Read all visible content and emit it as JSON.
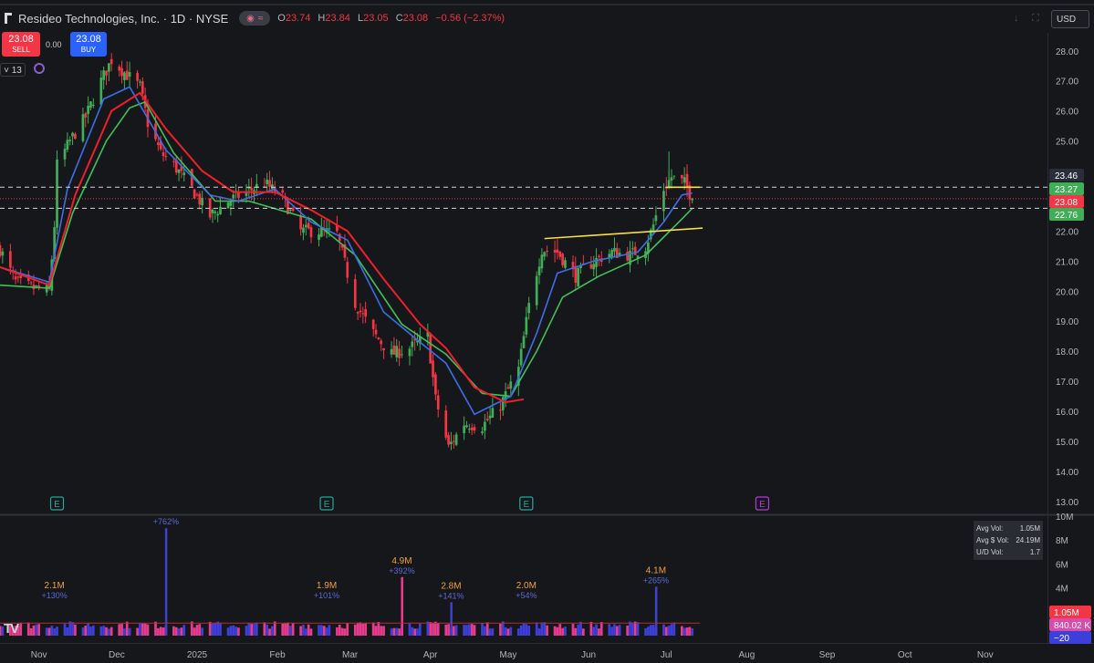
{
  "header": {
    "title": "Resideo Technologies, Inc. · 1D · NYSE",
    "o_label": "O",
    "o": "23.74",
    "h_label": "H",
    "h": "23.84",
    "l_label": "L",
    "l": "23.05",
    "c_label": "C",
    "c": "23.08",
    "change": "−0.56 (−2.37%)"
  },
  "trade": {
    "sell_price": "23.08",
    "sell_label": "SELL",
    "spread": "0.00",
    "buy_price": "23.08",
    "buy_label": "BUY"
  },
  "toolbar": {
    "count": "13",
    "currency": "USD"
  },
  "colors": {
    "up": "#3fae57",
    "down": "#f23645",
    "ema_red": "#f01f2a",
    "ema_blue": "#3d6ee8",
    "ema_green": "#3fc15a",
    "trendline": "#f6e14a",
    "vol_up": "#3d3fd8",
    "vol_down": "#e73c8e"
  },
  "volume_stats": {
    "avg_vol_label": "Avg Vol:",
    "avg_vol": "1.05M",
    "avg_dollar_vol_label": "Avg $ Vol:",
    "avg_dollar_vol": "24.19M",
    "ud_vol_label": "U/D Vol:",
    "ud_vol": "1.7"
  },
  "chart_data": [
    {
      "type": "candlestick",
      "title": "Resideo Technologies, Inc. · 1D · NYSE",
      "y_ticks": [
        13,
        14,
        15,
        16,
        17,
        18,
        19,
        20,
        21,
        22,
        23,
        24,
        25,
        26,
        27,
        28
      ],
      "y_tick_labels": [
        "13.00",
        "14.00",
        "15.00",
        "16.00",
        "17.00",
        "18.00",
        "19.00",
        "20.00",
        "21.00",
        "22.00",
        "",
        "",
        "25.00",
        "26.00",
        "27.00",
        "28.00"
      ],
      "ylim": [
        12.6,
        28.6
      ],
      "x_ticks": [
        {
          "label": "Nov",
          "date": "2024-11-01"
        },
        {
          "label": "Dec",
          "date": "2024-12-01"
        },
        {
          "label": "2025",
          "date": "2025-01-01"
        },
        {
          "label": "Feb",
          "date": "2025-02-01"
        },
        {
          "label": "Mar",
          "date": "2025-03-01"
        },
        {
          "label": "Apr",
          "date": "2025-04-01"
        },
        {
          "label": "May",
          "date": "2025-05-01"
        },
        {
          "label": "Jun",
          "date": "2025-06-01"
        },
        {
          "label": "Jul",
          "date": "2025-07-01"
        },
        {
          "label": "Aug",
          "date": "2025-08-01"
        },
        {
          "label": "Sep",
          "date": "2025-09-01"
        },
        {
          "label": "Oct",
          "date": "2025-10-01"
        },
        {
          "label": "Nov",
          "date": "2025-11-01"
        }
      ],
      "xlim": [
        "2024-10-17",
        "2025-11-25"
      ],
      "close_path": [
        [
          "2024-10-17",
          21.4
        ],
        [
          "2024-10-23",
          20.3
        ],
        [
          "2024-10-30",
          20.1
        ],
        [
          "2024-11-05",
          20.0
        ],
        [
          "2024-11-07",
          22.2
        ],
        [
          "2024-11-08",
          24.2
        ],
        [
          "2024-11-13",
          25.0
        ],
        [
          "2024-11-19",
          25.8
        ],
        [
          "2024-11-25",
          27.0
        ],
        [
          "2024-11-29",
          27.7
        ],
        [
          "2024-12-05",
          27.2
        ],
        [
          "2024-12-10",
          26.8
        ],
        [
          "2024-12-13",
          25.6
        ],
        [
          "2024-12-18",
          24.6
        ],
        [
          "2024-12-23",
          24.2
        ],
        [
          "2024-12-30",
          23.4
        ],
        [
          "2025-01-06",
          22.5
        ],
        [
          "2025-01-13",
          23.0
        ],
        [
          "2025-01-20",
          23.3
        ],
        [
          "2025-01-27",
          23.6
        ],
        [
          "2025-02-03",
          23.1
        ],
        [
          "2025-02-10",
          22.0
        ],
        [
          "2025-02-17",
          22.0
        ],
        [
          "2025-02-24",
          21.9
        ],
        [
          "2025-03-03",
          19.6
        ],
        [
          "2025-03-10",
          18.6
        ],
        [
          "2025-03-17",
          17.9
        ],
        [
          "2025-03-24",
          18.1
        ],
        [
          "2025-03-31",
          18.5
        ],
        [
          "2025-04-03",
          16.4
        ],
        [
          "2025-04-08",
          14.8
        ],
        [
          "2025-04-14",
          15.6
        ],
        [
          "2025-04-21",
          15.5
        ],
        [
          "2025-04-28",
          16.2
        ],
        [
          "2025-05-05",
          17.4
        ],
        [
          "2025-05-09",
          19.5
        ],
        [
          "2025-05-14",
          21.4
        ],
        [
          "2025-05-20",
          21.3
        ],
        [
          "2025-05-27",
          20.5
        ],
        [
          "2025-06-03",
          21.0
        ],
        [
          "2025-06-10",
          21.3
        ],
        [
          "2025-06-17",
          21.2
        ],
        [
          "2025-06-23",
          21.5
        ],
        [
          "2025-06-26",
          22.2
        ],
        [
          "2025-06-30",
          23.4
        ],
        [
          "2025-07-03",
          23.8
        ],
        [
          "2025-07-08",
          23.6
        ],
        [
          "2025-07-11",
          23.08
        ]
      ],
      "spike_high": {
        "date": "2025-07-02",
        "value": 24.65
      },
      "ema_red": [
        [
          "2024-10-17",
          20.8
        ],
        [
          "2024-11-05",
          20.2
        ],
        [
          "2024-11-15",
          23.2
        ],
        [
          "2024-11-29",
          26.0
        ],
        [
          "2024-12-10",
          26.6
        ],
        [
          "2024-12-20",
          25.4
        ],
        [
          "2025-01-03",
          24.0
        ],
        [
          "2025-01-15",
          23.3
        ],
        [
          "2025-01-31",
          23.3
        ],
        [
          "2025-02-14",
          22.7
        ],
        [
          "2025-02-28",
          22.0
        ],
        [
          "2025-03-14",
          20.4
        ],
        [
          "2025-03-28",
          18.9
        ],
        [
          "2025-04-07",
          18.1
        ],
        [
          "2025-04-18",
          16.8
        ],
        [
          "2025-04-30",
          16.3
        ],
        [
          "2025-05-07",
          16.4
        ]
      ],
      "ema_blue": [
        [
          "2024-10-17",
          20.8
        ],
        [
          "2024-11-05",
          20.3
        ],
        [
          "2024-11-12",
          23.4
        ],
        [
          "2024-11-26",
          26.4
        ],
        [
          "2024-12-06",
          26.8
        ],
        [
          "2024-12-20",
          24.7
        ],
        [
          "2025-01-06",
          23.2
        ],
        [
          "2025-01-17",
          23.0
        ],
        [
          "2025-01-31",
          23.4
        ],
        [
          "2025-02-14",
          22.3
        ],
        [
          "2025-02-28",
          21.7
        ],
        [
          "2025-03-14",
          19.3
        ],
        [
          "2025-03-28",
          18.3
        ],
        [
          "2025-04-07",
          17.6
        ],
        [
          "2025-04-18",
          15.9
        ],
        [
          "2025-05-02",
          16.5
        ],
        [
          "2025-05-12",
          18.6
        ],
        [
          "2025-05-20",
          20.6
        ],
        [
          "2025-06-03",
          21.0
        ],
        [
          "2025-06-20",
          21.3
        ],
        [
          "2025-06-30",
          22.3
        ],
        [
          "2025-07-07",
          23.2
        ],
        [
          "2025-07-11",
          23.27
        ]
      ],
      "ema_green": [
        [
          "2024-10-17",
          20.2
        ],
        [
          "2024-11-05",
          20.1
        ],
        [
          "2024-11-14",
          22.6
        ],
        [
          "2024-11-27",
          25.0
        ],
        [
          "2024-12-06",
          26.1
        ],
        [
          "2024-12-12",
          26.3
        ],
        [
          "2024-12-23",
          24.6
        ],
        [
          "2025-01-08",
          23.0
        ],
        [
          "2025-01-21",
          23.0
        ],
        [
          "2025-02-14",
          22.4
        ],
        [
          "2025-03-03",
          21.2
        ],
        [
          "2025-03-21",
          18.9
        ],
        [
          "2025-04-07",
          17.9
        ],
        [
          "2025-04-21",
          16.6
        ],
        [
          "2025-05-02",
          16.5
        ],
        [
          "2025-05-12",
          18.0
        ],
        [
          "2025-05-22",
          19.8
        ],
        [
          "2025-06-05",
          20.5
        ],
        [
          "2025-06-23",
          21.2
        ],
        [
          "2025-06-30",
          21.8
        ],
        [
          "2025-07-07",
          22.4
        ],
        [
          "2025-07-11",
          22.76
        ]
      ],
      "trendline_lower": [
        [
          "2025-05-15",
          21.75
        ],
        [
          "2025-07-15",
          22.1
        ]
      ],
      "trendline_upper": [
        [
          "2025-07-01",
          23.46
        ],
        [
          "2025-07-14",
          23.46
        ]
      ],
      "horizontal_levels": [
        23.46,
        22.76
      ],
      "price_labels": [
        {
          "text": "23.46",
          "value": 23.46,
          "color": "#2a2e39"
        },
        {
          "text": "23.27",
          "value": 23.27,
          "color": "#3fae57"
        },
        {
          "text": "23.08",
          "value": 23.08,
          "color": "#f23645"
        },
        {
          "text": "22.76",
          "value": 22.76,
          "color": "#3fae57"
        }
      ],
      "earnings_markers": [
        {
          "date": "2024-11-08",
          "label": "E",
          "color": "#26a69a"
        },
        {
          "date": "2025-02-20",
          "label": "E",
          "color": "#26a69a"
        },
        {
          "date": "2025-05-08",
          "label": "E",
          "color": "#26a69a"
        },
        {
          "date": "2025-08-07",
          "label": "E",
          "color": "#b33bd4"
        }
      ]
    },
    {
      "type": "bar",
      "title": "Volume",
      "y_ticks": [
        4,
        6,
        8,
        10
      ],
      "y_tick_labels": [
        "4M",
        "6M",
        "8M",
        "10M"
      ],
      "ylim": [
        0,
        10
      ],
      "baseline_m": 1.05,
      "annotations": [
        {
          "date": "2024-11-07",
          "value": "2.1M",
          "pct": "+130%"
        },
        {
          "date": "2024-12-20",
          "value": "",
          "pct": "+762%",
          "height": 9.0
        },
        {
          "date": "2025-02-20",
          "value": "1.9M",
          "pct": "+101%"
        },
        {
          "date": "2025-03-21",
          "value": "4.9M",
          "pct": "+392%",
          "height": 4.9
        },
        {
          "date": "2025-04-09",
          "value": "2.8M",
          "pct": "+141%",
          "height": 2.8
        },
        {
          "date": "2025-05-08",
          "value": "2.0M",
          "pct": "+54%"
        },
        {
          "date": "2025-06-27",
          "value": "4.1M",
          "pct": "+265%",
          "height": 4.1
        }
      ],
      "value_labels": [
        {
          "text": "1.05M",
          "color": "#f23645"
        },
        {
          "text": "840.02 K",
          "color": "#d84da9"
        },
        {
          "text": "−20",
          "color": "#3d3fd8"
        }
      ]
    }
  ]
}
